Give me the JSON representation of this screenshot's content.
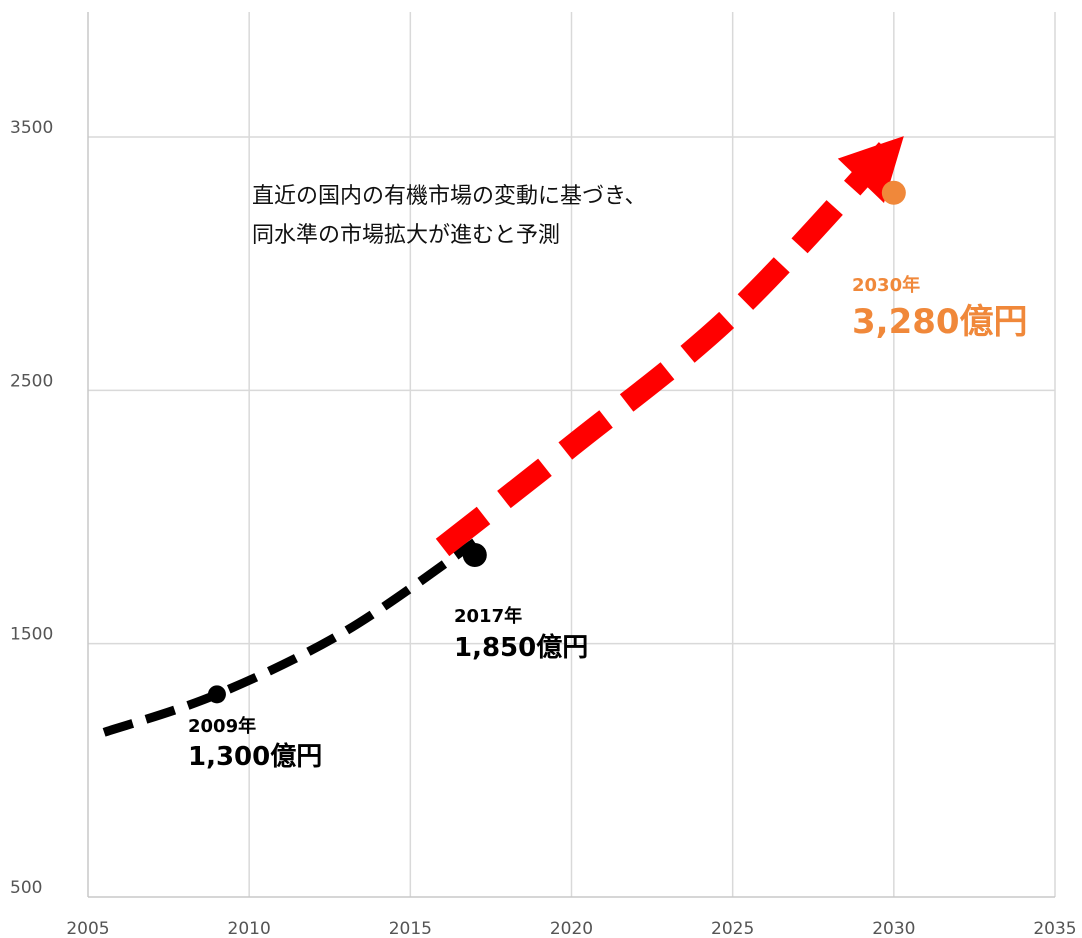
{
  "chart_data": {
    "type": "line",
    "xlim": [
      2005,
      2035
    ],
    "ylim": [
      500,
      4000
    ],
    "x_ticks": [
      "2005",
      "2010",
      "2015",
      "2020",
      "2025",
      "2030",
      "2035"
    ],
    "y_ticks": [
      "500",
      "1500",
      "2500",
      "3500"
    ],
    "grid": true,
    "series": [
      {
        "style": "dashed",
        "color": "#000000",
        "points": [
          [
            2005.5,
            1150
          ],
          [
            2009,
            1300
          ],
          [
            2013,
            1550
          ],
          [
            2017,
            1900
          ]
        ]
      },
      {
        "style": "dashed-arrow",
        "color": "#ff0000",
        "points": [
          [
            2016,
            1880
          ],
          [
            2020,
            2280
          ],
          [
            2025,
            2800
          ],
          [
            2030,
            3480
          ]
        ]
      }
    ],
    "points": [
      {
        "x": 2009,
        "y": 1300,
        "color": "#000000",
        "size": "small"
      },
      {
        "x": 2017,
        "y": 1850,
        "color": "#000000",
        "size": "large"
      },
      {
        "x": 2030,
        "y": 3280,
        "color": "#f0883a",
        "size": "large"
      }
    ],
    "annotations": [
      {
        "year_label": "2009年",
        "value_label": "1,300億円",
        "color": "#000000"
      },
      {
        "year_label": "2017年",
        "value_label": "1,850億円",
        "color": "#000000"
      },
      {
        "year_label": "2030年",
        "value_label": "3,280億円",
        "color": "#f0883a"
      }
    ],
    "note": [
      "直近の国内の有機市場の変動に基づき、",
      "同水準の市場拡大が進むと予測"
    ]
  }
}
